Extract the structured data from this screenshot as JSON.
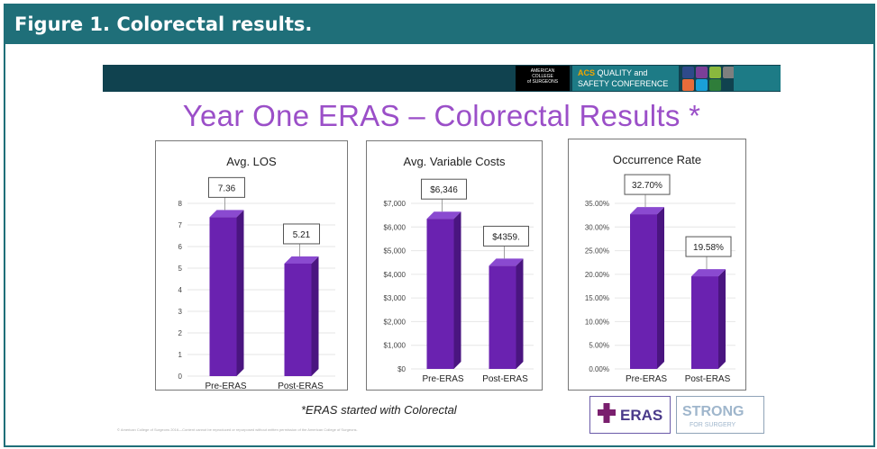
{
  "figure": {
    "caption": "Figure 1. Colorectal results."
  },
  "slide": {
    "title": "Year One ERAS – Colorectal Results *",
    "footnote": "*ERAS started with Colorectal",
    "copyright": "© American College of Surgeons 2016—Content cannot be reproduced or repurposed without written permission of the American College of Surgeons.",
    "banner": {
      "acs_lines": [
        "AMERICAN",
        "COLLEGE",
        "of SURGEONS"
      ],
      "conf_acs": "ACS",
      "conf_line1": " QUALITY and",
      "conf_line2": "SAFETY CONFERENCE",
      "square_colors": [
        "#2e4a8a",
        "#7b3f98",
        "#8ab83e",
        "#7f7f7f",
        "#e86c3a",
        "#1aa0d8",
        "#2f7d3a"
      ]
    },
    "logos": {
      "eras_text": "ERAS",
      "strong_text": "STRONG",
      "strong_sub": "FOR SURGERY"
    }
  },
  "colors": {
    "bar": "#6a22b0",
    "bar_side": "#4a1580",
    "bar_top": "#8a4ad0",
    "accent": "#9b4fc8",
    "header": "#1f6f79"
  },
  "chart_data": [
    {
      "type": "bar",
      "title": "Avg. LOS",
      "categories": [
        "Pre-ERAS",
        "Post-ERAS"
      ],
      "values": [
        7.36,
        5.21
      ],
      "data_labels": [
        "7.36",
        "5.21"
      ],
      "yticks": [
        "0",
        "1",
        "2",
        "3",
        "4",
        "5",
        "6",
        "7",
        "8"
      ],
      "ylim": [
        0,
        8
      ],
      "xlabel": "",
      "ylabel": ""
    },
    {
      "type": "bar",
      "title": "Avg. Variable Costs",
      "categories": [
        "Pre-ERAS",
        "Post-ERAS"
      ],
      "values": [
        6346,
        4359
      ],
      "data_labels": [
        "$6,346",
        "$4359."
      ],
      "yticks": [
        "$0",
        "$1,000",
        "$2,000",
        "$3,000",
        "$4,000",
        "$5,000",
        "$6,000",
        "$7,000"
      ],
      "ylim": [
        0,
        7000
      ],
      "xlabel": "",
      "ylabel": ""
    },
    {
      "type": "bar",
      "title": "Occurrence Rate",
      "categories": [
        "Pre-ERAS",
        "Post-ERAS"
      ],
      "values": [
        32.7,
        19.58
      ],
      "data_labels": [
        "32.70%",
        "19.58%"
      ],
      "yticks": [
        "0.00%",
        "5.00%",
        "10.00%",
        "15.00%",
        "20.00%",
        "25.00%",
        "30.00%",
        "35.00%"
      ],
      "ylim": [
        0,
        35
      ],
      "xlabel": "",
      "ylabel": ""
    }
  ]
}
